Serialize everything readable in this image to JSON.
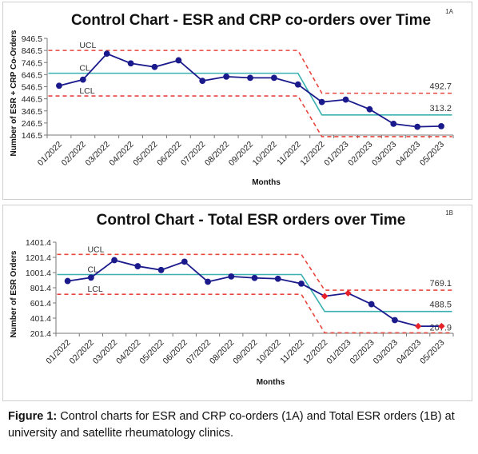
{
  "figure": {
    "caption_label": "Figure 1:",
    "caption_text": " Control charts for ESR and CRP co-orders (1A) and Total ESR orders (1B) at university and satellite rheumatology clinics."
  },
  "colors": {
    "series": "#1a1a8c",
    "highlight": "#e8202a",
    "center_line": "#3ab0b0",
    "limit_line": "#e8453c"
  },
  "chart_data": [
    {
      "type": "line",
      "panel_label": "1A",
      "title": "Control Chart - ESR and CRP co-orders over Time",
      "xlabel": "Months",
      "ylabel": "Number of ESR + CRP Co-Orders",
      "categories": [
        "01/2022",
        "02/2022",
        "03/2022",
        "04/2022",
        "05/2022",
        "06/2022",
        "07/2022",
        "08/2022",
        "09/2022",
        "10/2022",
        "11/2022",
        "12/2022",
        "01/2023",
        "02/2023",
        "03/2023",
        "04/2023",
        "05/2023"
      ],
      "yticks": [
        "946.5",
        "846.5",
        "746.5",
        "646.5",
        "546.5",
        "446.5",
        "346.5",
        "246.5",
        "146.5"
      ],
      "ylim": [
        146.5,
        946.5
      ],
      "grid": false,
      "series": [
        {
          "values": [
            555,
            605,
            820,
            740,
            710,
            765,
            595,
            630,
            620,
            620,
            565,
            420,
            440,
            360,
            240,
            215,
            220
          ]
        }
      ],
      "highlight_indices": [],
      "control_limits": {
        "labels": {
          "ucl": "UCL",
          "cl": "CL",
          "lcl": "LCL"
        },
        "phase1": {
          "ucl": 846.5,
          "cl": 658,
          "lcl": 470
        },
        "phase2": {
          "ucl": 492.7,
          "cl": 313.2,
          "lcl": 133.7
        },
        "value_labels": [
          "492.7",
          "313.2"
        ]
      }
    },
    {
      "type": "line",
      "panel_label": "1B",
      "title": "Control Chart - Total ESR orders over Time",
      "xlabel": "Months",
      "ylabel": "Number of ESR Orders",
      "categories": [
        "01/2022",
        "02/2022",
        "03/2022",
        "04/2022",
        "05/2022",
        "06/2022",
        "07/2022",
        "08/2022",
        "09/2022",
        "10/2022",
        "11/2022",
        "12/2022",
        "01/2023",
        "02/2023",
        "03/2023",
        "04/2023",
        "05/2023"
      ],
      "yticks": [
        "1401.4",
        "1201.4",
        "1001.4",
        "801.4",
        "601.4",
        "401.4",
        "201.4"
      ],
      "ylim": [
        201.4,
        1401.4
      ],
      "grid": false,
      "series": [
        {
          "values": [
            890,
            935,
            1165,
            1085,
            1035,
            1145,
            880,
            950,
            930,
            920,
            855,
            690,
            730,
            585,
            375,
            295,
            295
          ]
        }
      ],
      "highlight_indices": [
        11,
        12,
        15,
        16
      ],
      "control_limits": {
        "labels": {
          "ucl": "UCL",
          "cl": "CL",
          "lcl": "LCL"
        },
        "phase1": {
          "ucl": 1240,
          "cl": 975,
          "lcl": 715
        },
        "phase2": {
          "ucl": 769.1,
          "cl": 488.5,
          "lcl": 207.9
        },
        "value_labels": [
          "769.1",
          "488.5",
          "207.9"
        ]
      }
    }
  ]
}
